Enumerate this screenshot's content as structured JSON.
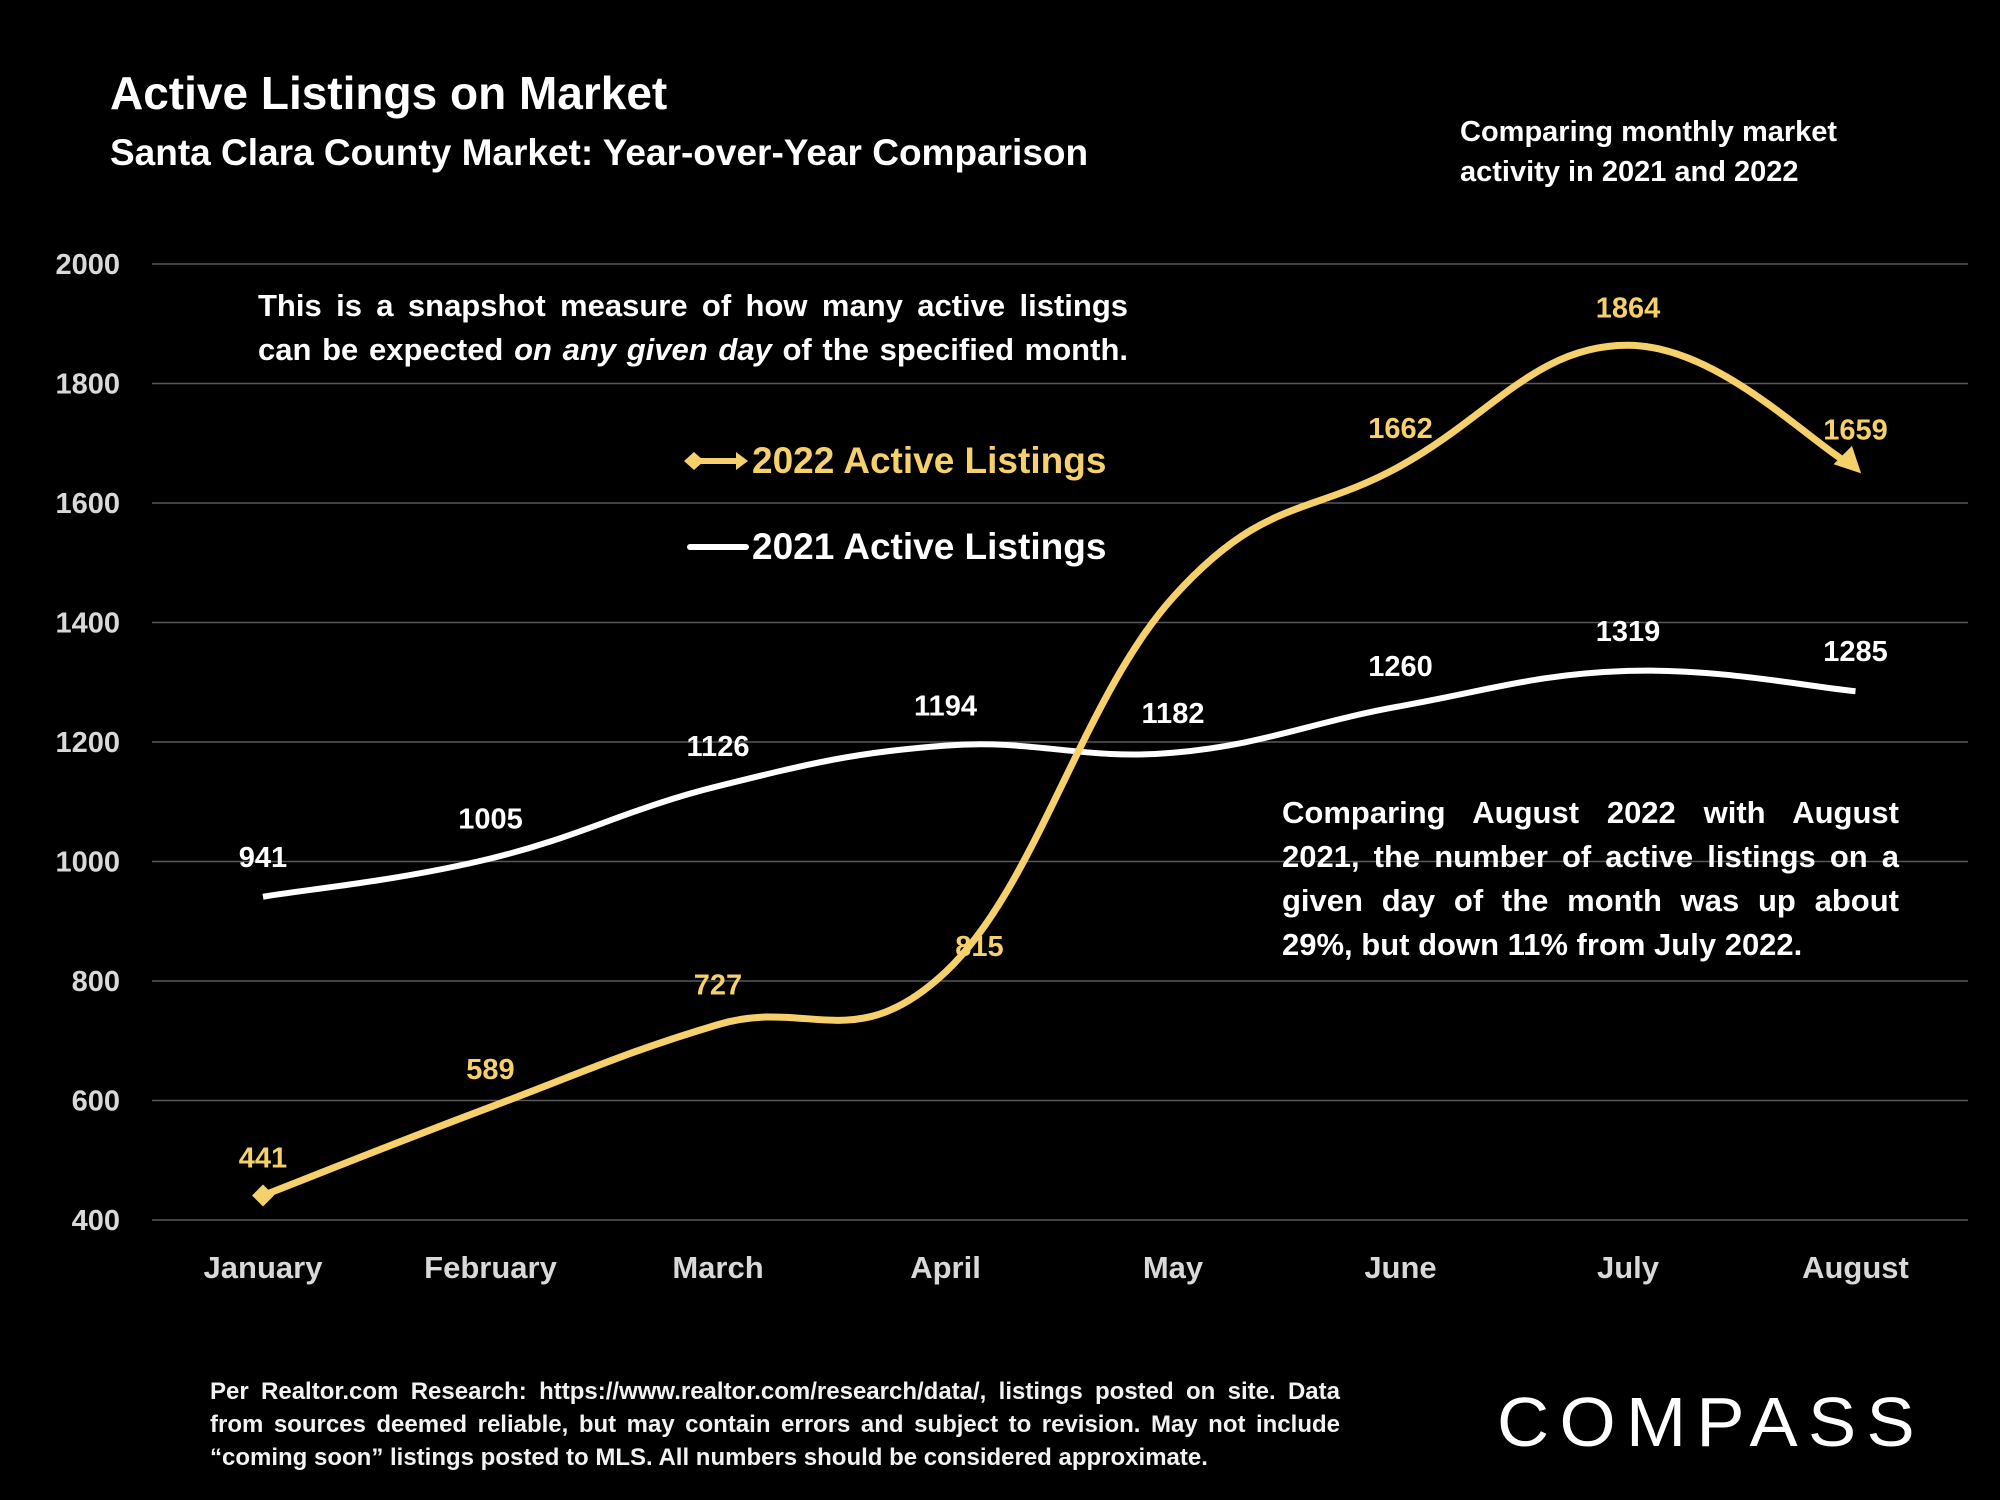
{
  "header": {
    "title": "Active Listings on Market",
    "subtitle": "Santa Clara County Market: Year-over-Year Comparison",
    "corner_note": "Comparing monthly market activity in 2021 and 2022"
  },
  "notes": {
    "top_pre": "This is a snapshot measure of how many active listings can be expected ",
    "top_italic": "on any given day",
    "top_post": " of the specified month.",
    "bottom": "Comparing August 2022 with August 2021, the number of active listings on a given day of the month was up about 29%, but down 11% from July 2022."
  },
  "footer": {
    "text": "Per Realtor.com Research:  https://www.realtor.com/research/data/, listings posted on site. Data from sources deemed reliable, but may contain errors and subject to revision. May not include “coming soon” listings posted to MLS. All numbers should be considered approximate."
  },
  "logo": {
    "text": "COMPASS"
  },
  "colors": {
    "background": "#000000",
    "series_2022": "#f6d06a",
    "series_2021": "#ffffff",
    "grid": "#595959",
    "axis_text": "#d9d9d9"
  },
  "chart_data": {
    "type": "line",
    "title": "Active Listings on Market",
    "subtitle": "Santa Clara County Market: Year-over-Year Comparison",
    "xlabel": "",
    "ylabel": "",
    "categories": [
      "January",
      "February",
      "March",
      "April",
      "May",
      "June",
      "July",
      "August"
    ],
    "ylim": [
      400,
      2000
    ],
    "yticks": [
      400,
      600,
      800,
      1000,
      1200,
      1400,
      1600,
      1800,
      2000
    ],
    "grid": true,
    "smooth": true,
    "legend_position": "center-left",
    "series": [
      {
        "name": "2022 Active Listings",
        "color": "#f6d06a",
        "values": [
          441,
          589,
          727,
          815,
          1442,
          1662,
          1864,
          1659
        ],
        "labels": [
          "441",
          "589",
          "727",
          "815",
          null,
          "1662",
          "1864",
          "1659"
        ]
      },
      {
        "name": "2021 Active Listings",
        "color": "#ffffff",
        "values": [
          941,
          1005,
          1126,
          1194,
          1182,
          1260,
          1319,
          1285
        ],
        "labels": [
          "941",
          "1005",
          "1126",
          "1194",
          "1182",
          "1260",
          "1319",
          "1285"
        ]
      }
    ]
  }
}
